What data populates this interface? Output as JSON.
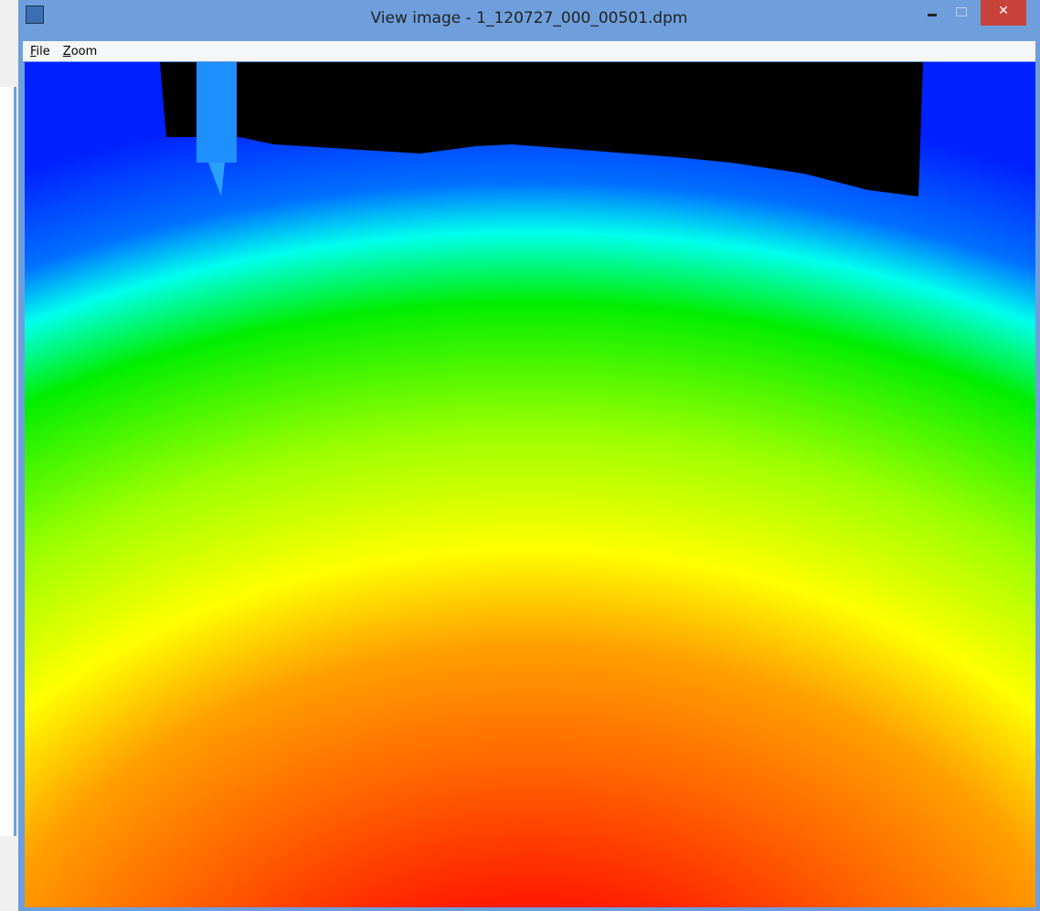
{
  "window": {
    "title": "View image - 1_120727_000_00501.dpm"
  },
  "menu": {
    "items": [
      "File",
      "Zoom"
    ]
  }
}
